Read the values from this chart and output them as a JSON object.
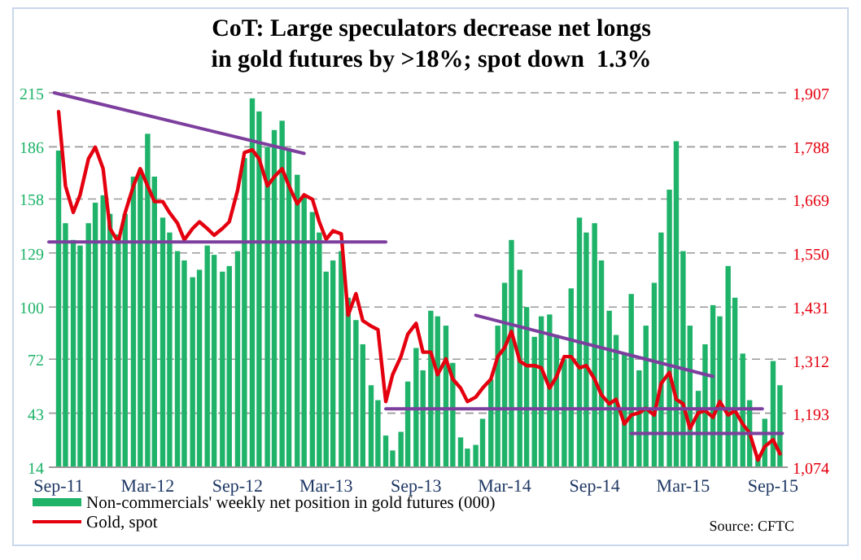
{
  "chart_data": {
    "type": "bar",
    "title": "CoT: Large speculators decrease net longs\nin gold futures by >18%; spot down  1.3%",
    "annotations": [
      "Source: CFTC"
    ],
    "x": [
      "2011-09-01",
      "2011-09-15",
      "2011-10-01",
      "2011-10-15",
      "2011-11-01",
      "2011-11-15",
      "2011-12-01",
      "2011-12-15",
      "2012-01-01",
      "2012-01-15",
      "2012-02-01",
      "2012-02-15",
      "2012-03-01",
      "2012-03-15",
      "2012-04-01",
      "2012-04-15",
      "2012-05-01",
      "2012-05-15",
      "2012-06-01",
      "2012-06-15",
      "2012-07-01",
      "2012-07-15",
      "2012-08-01",
      "2012-08-15",
      "2012-09-01",
      "2012-09-15",
      "2012-10-01",
      "2012-10-15",
      "2012-11-01",
      "2012-11-15",
      "2012-12-01",
      "2012-12-15",
      "2013-01-01",
      "2013-01-15",
      "2013-02-01",
      "2013-02-15",
      "2013-03-01",
      "2013-03-15",
      "2013-04-01",
      "2013-04-15",
      "2013-05-01",
      "2013-05-15",
      "2013-06-01",
      "2013-06-15",
      "2013-07-01",
      "2013-07-15",
      "2013-08-01",
      "2013-08-15",
      "2013-09-01",
      "2013-09-15",
      "2013-10-01",
      "2013-10-15",
      "2013-11-01",
      "2013-11-15",
      "2013-12-01",
      "2013-12-15",
      "2014-01-01",
      "2014-01-15",
      "2014-02-01",
      "2014-02-15",
      "2014-03-01",
      "2014-03-15",
      "2014-04-01",
      "2014-04-15",
      "2014-05-01",
      "2014-05-15",
      "2014-06-01",
      "2014-06-15",
      "2014-07-01",
      "2014-07-15",
      "2014-08-01",
      "2014-08-15",
      "2014-09-01",
      "2014-09-15",
      "2014-10-01",
      "2014-10-15",
      "2014-11-01",
      "2014-11-15",
      "2014-12-01",
      "2014-12-15",
      "2015-01-01",
      "2015-01-15",
      "2015-02-01",
      "2015-02-15",
      "2015-03-01",
      "2015-03-15",
      "2015-04-01",
      "2015-04-15",
      "2015-05-01",
      "2015-05-15",
      "2015-06-01",
      "2015-06-15",
      "2015-07-01",
      "2015-07-15",
      "2015-08-01",
      "2015-08-15",
      "2015-09-01",
      "2015-09-15"
    ],
    "xlim": [
      "2011-08-12",
      "2015-10-01"
    ],
    "xticks": [
      {
        "value": "2011-09-01",
        "label": "Sep-11"
      },
      {
        "value": "2012-03-01",
        "label": "Mar-12"
      },
      {
        "value": "2012-09-01",
        "label": "Sep-12"
      },
      {
        "value": "2013-03-01",
        "label": "Mar-13"
      },
      {
        "value": "2013-09-01",
        "label": "Sep-13"
      },
      {
        "value": "2014-03-01",
        "label": "Mar-14"
      },
      {
        "value": "2014-09-01",
        "label": "Sep-14"
      },
      {
        "value": "2015-03-01",
        "label": "Mar-15"
      },
      {
        "value": "2015-09-01",
        "label": "Sep-15"
      }
    ],
    "ylim": [
      14,
      215
    ],
    "yticks": [
      14,
      43,
      72,
      100,
      129,
      158,
      186,
      215
    ],
    "y2lim": [
      1074,
      1907
    ],
    "y2ticks": [
      {
        "value": 1074,
        "label": "1,074"
      },
      {
        "value": 1193,
        "label": "1,193"
      },
      {
        "value": 1312,
        "label": "1,312"
      },
      {
        "value": 1431,
        "label": "1,431"
      },
      {
        "value": 1550,
        "label": "1,550"
      },
      {
        "value": 1669,
        "label": "1,669"
      },
      {
        "value": 1788,
        "label": "1,788"
      },
      {
        "value": 1907,
        "label": "1,907"
      }
    ],
    "grid": "y",
    "legend": "bottom left",
    "series": [
      {
        "name": "Non-commercials' weekly net position in gold futures (000)",
        "color": "#1fb36a",
        "values": [
          184,
          145,
          136,
          133,
          145,
          156,
          160,
          150,
          139,
          150,
          170,
          174,
          193,
          170,
          148,
          140,
          130,
          125,
          116,
          120,
          133,
          128,
          119,
          122,
          130,
          180,
          212,
          205,
          186,
          195,
          200,
          185,
          171,
          160,
          151,
          140,
          119,
          125,
          130,
          105,
          93,
          80,
          58,
          50,
          31,
          23,
          33,
          60,
          78,
          66,
          98,
          95,
          90,
          70,
          30,
          24,
          26,
          40,
          61,
          90,
          113,
          136,
          120,
          100,
          84,
          95,
          96,
          85,
          72,
          110,
          148,
          140,
          145,
          125,
          98,
          85,
          75,
          107,
          66,
          90,
          113,
          140,
          163,
          189,
          130,
          90,
          55,
          80,
          101,
          95,
          122,
          105,
          75,
          50,
          20,
          40,
          71,
          58
        ]
      },
      {
        "type": "line",
        "axis": "y2",
        "name": "Gold, spot",
        "color": "#e4000f",
        "values": [
          1865,
          1700,
          1641,
          1680,
          1760,
          1786,
          1738,
          1605,
          1575,
          1640,
          1700,
          1738,
          1700,
          1665,
          1665,
          1640,
          1617,
          1580,
          1605,
          1620,
          1605,
          1590,
          1605,
          1620,
          1690,
          1774,
          1780,
          1760,
          1700,
          1720,
          1738,
          1700,
          1660,
          1680,
          1670,
          1620,
          1581,
          1600,
          1593,
          1412,
          1460,
          1400,
          1388,
          1380,
          1220,
          1280,
          1320,
          1370,
          1394,
          1330,
          1330,
          1280,
          1315,
          1270,
          1250,
          1220,
          1230,
          1250,
          1270,
          1320,
          1340,
          1376,
          1310,
          1300,
          1300,
          1295,
          1250,
          1275,
          1320,
          1320,
          1295,
          1300,
          1270,
          1235,
          1215,
          1225,
          1170,
          1190,
          1195,
          1205,
          1190,
          1260,
          1285,
          1225,
          1215,
          1160,
          1195,
          1200,
          1185,
          1220,
          1190,
          1200,
          1170,
          1150,
          1090,
          1120,
          1135,
          1104
        ]
      },
      {
        "type": "line",
        "axis": "y2",
        "color": "#7d3f9e",
        "x": [
          "2011-08-23",
          "2013-01-15"
        ],
        "values": [
          1907,
          1772
        ]
      },
      {
        "type": "line",
        "axis": "y2",
        "color": "#7d3f9e",
        "x": [
          "2011-08-12",
          "2013-07-01"
        ],
        "values": [
          1575,
          1575
        ]
      },
      {
        "type": "line",
        "axis": "y2",
        "color": "#7d3f9e",
        "x": [
          "2013-07-01",
          "2015-08-10"
        ],
        "values": [
          1204,
          1204
        ]
      },
      {
        "type": "line",
        "axis": "y2",
        "color": "#7d3f9e",
        "x": [
          "2014-01-01",
          "2015-05-01"
        ],
        "values": [
          1412,
          1276
        ]
      },
      {
        "type": "line",
        "axis": "y2",
        "color": "#7d3f9e",
        "x": [
          "2014-11-15",
          "2015-09-20"
        ],
        "values": [
          1149,
          1149
        ]
      }
    ]
  }
}
